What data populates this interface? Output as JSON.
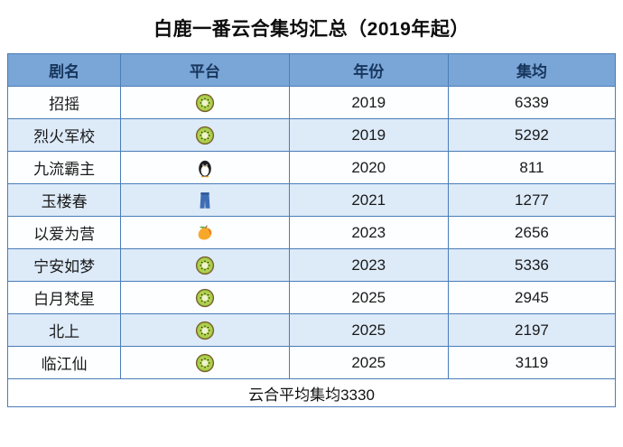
{
  "title": "白鹿一番云合集均汇总（2019年起）",
  "headers": {
    "name": "剧名",
    "platform": "平台",
    "year": "年份",
    "avg": "集均"
  },
  "rows": [
    {
      "name": "招摇",
      "platform_icon": "kiwi-icon",
      "year": "2019",
      "avg": "6339"
    },
    {
      "name": "烈火军校",
      "platform_icon": "kiwi-icon",
      "year": "2019",
      "avg": "5292"
    },
    {
      "name": "九流霸主",
      "platform_icon": "penguin-icon",
      "year": "2020",
      "avg": "811"
    },
    {
      "name": "玉楼春",
      "platform_icon": "jeans-icon",
      "year": "2021",
      "avg": "1277"
    },
    {
      "name": "以爱为营",
      "platform_icon": "mango-icon",
      "year": "2023",
      "avg": "2656"
    },
    {
      "name": "宁安如梦",
      "platform_icon": "kiwi-icon",
      "year": "2023",
      "avg": "5336"
    },
    {
      "name": "白月梵星",
      "platform_icon": "kiwi-icon",
      "year": "2025",
      "avg": "2945"
    },
    {
      "name": "北上",
      "platform_icon": "kiwi-icon",
      "year": "2025",
      "avg": "2197"
    },
    {
      "name": "临江仙",
      "platform_icon": "kiwi-icon",
      "year": "2025",
      "avg": "3119"
    }
  ],
  "footer": "云合平均集均3330",
  "colors": {
    "header_bg": "#7aa5d7",
    "header_text": "#17365c",
    "row_alt_bg": "#ddeaf8",
    "border": "#4a7db8",
    "background": "#ffffff"
  },
  "chart_data": {
    "type": "table",
    "title": "白鹿一番云合集均汇总（2019年起）",
    "columns": [
      "剧名",
      "平台",
      "年份",
      "集均"
    ],
    "rows": [
      [
        "招摇",
        "kiwi",
        2019,
        6339
      ],
      [
        "烈火军校",
        "kiwi",
        2019,
        5292
      ],
      [
        "九流霸主",
        "penguin",
        2020,
        811
      ],
      [
        "玉楼春",
        "jeans",
        2021,
        1277
      ],
      [
        "以爱为营",
        "mango",
        2023,
        2656
      ],
      [
        "宁安如梦",
        "kiwi",
        2023,
        5336
      ],
      [
        "白月梵星",
        "kiwi",
        2025,
        2945
      ],
      [
        "北上",
        "kiwi",
        2025,
        2197
      ],
      [
        "临江仙",
        "kiwi",
        2025,
        3119
      ]
    ],
    "footer_note": "云合平均集均3330",
    "average": 3330
  }
}
